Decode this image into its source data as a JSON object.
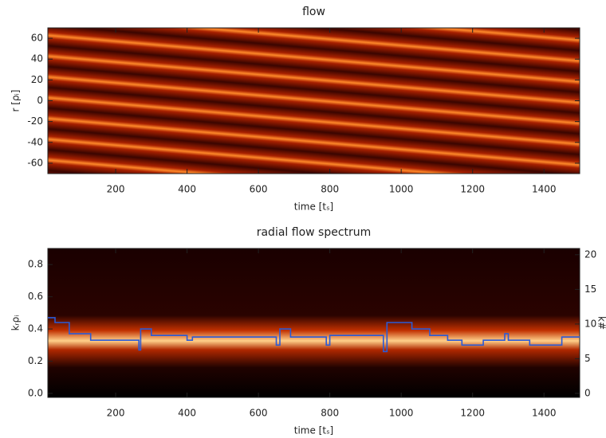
{
  "chart_data": [
    {
      "type": "heatmap",
      "title": "flow",
      "xlabel": "time [tₛ]",
      "ylabel": "r [ρᵢ]",
      "xlim": [
        10,
        1500
      ],
      "xticks": [
        200,
        400,
        600,
        800,
        1000,
        1200,
        1400
      ],
      "ylim": [
        -70,
        70
      ],
      "yticks": [
        -60,
        -40,
        -20,
        0,
        20,
        40,
        60
      ]
    },
    {
      "type": "heatmap-line",
      "title": "radial flow spectrum",
      "xlabel": "time [tₛ]",
      "ylabel": "kᵣρᵢ",
      "y2label": "k#",
      "xlim": [
        10,
        1500
      ],
      "xticks": [
        200,
        400,
        600,
        800,
        1000,
        1200,
        1400
      ],
      "ylim": [
        -0.025,
        0.9
      ],
      "yticks": [
        {
          "value": 0,
          "label": "0.0"
        },
        {
          "value": 0.2,
          "label": "0.2"
        },
        {
          "value": 0.4,
          "label": "0.4"
        },
        {
          "value": 0.6,
          "label": "0.6"
        },
        {
          "value": 0.8,
          "label": "0.8"
        }
      ],
      "y2lim": [
        -0.58,
        20.9
      ],
      "y2ticks": [
        0,
        5,
        10,
        15,
        20
      ],
      "series": [
        {
          "color": "#2a5bd7",
          "x": [
            10,
            30,
            30,
            70,
            70,
            130,
            130,
            265,
            265,
            270,
            270,
            300,
            300,
            400,
            400,
            415,
            415,
            650,
            650,
            660,
            660,
            690,
            690,
            790,
            790,
            800,
            800,
            950,
            950,
            960,
            960,
            1030,
            1030,
            1080,
            1080,
            1130,
            1130,
            1170,
            1170,
            1230,
            1230,
            1290,
            1290,
            1300,
            1300,
            1360,
            1360,
            1450,
            1450,
            1500
          ],
          "values": [
            0.47,
            0.47,
            0.44,
            0.44,
            0.37,
            0.37,
            0.33,
            0.33,
            0.27,
            0.27,
            0.4,
            0.4,
            0.36,
            0.36,
            0.33,
            0.33,
            0.35,
            0.35,
            0.3,
            0.3,
            0.4,
            0.4,
            0.35,
            0.35,
            0.3,
            0.3,
            0.36,
            0.36,
            0.26,
            0.26,
            0.44,
            0.44,
            0.4,
            0.4,
            0.36,
            0.36,
            0.33,
            0.33,
            0.3,
            0.3,
            0.33,
            0.33,
            0.37,
            0.37,
            0.33,
            0.33,
            0.3,
            0.3,
            0.35,
            0.35
          ]
        }
      ]
    }
  ]
}
